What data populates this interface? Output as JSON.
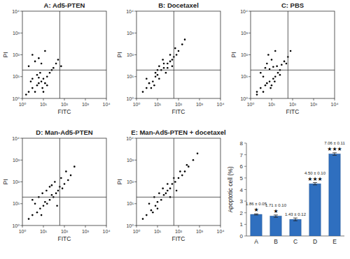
{
  "chart_data": [
    {
      "type": "scatter",
      "title": "A: Ad5-PTEN",
      "x_label": "FITC",
      "y_label": "PI",
      "log": true,
      "color": "#000000",
      "marker": "dot",
      "xlim": [
        1,
        10000
      ],
      "ylim": [
        1,
        10000
      ],
      "xticks": [
        {
          "value": 1,
          "label": "10⁰"
        },
        {
          "value": 10,
          "label": "10¹"
        },
        {
          "value": 100,
          "label": "10²"
        },
        {
          "value": 1000,
          "label": "10³"
        },
        {
          "value": 10000,
          "label": "10⁴"
        }
      ],
      "yticks": [
        {
          "value": 1,
          "label": "10⁰"
        },
        {
          "value": 10,
          "label": "10¹"
        },
        {
          "value": 100,
          "label": "10²"
        },
        {
          "value": 1000,
          "label": "10³"
        },
        {
          "value": 10000,
          "label": "10⁴"
        }
      ],
      "gate_x": 60,
      "gate_y": 20,
      "x": [
        2,
        3,
        4,
        5,
        6,
        8,
        10,
        12,
        15,
        3,
        5,
        7,
        9,
        20,
        25,
        30,
        40,
        2,
        4,
        6,
        3,
        8,
        12,
        50,
        70,
        1.5,
        2.5,
        10,
        15,
        6
      ],
      "values": [
        2,
        3,
        2,
        4,
        5,
        6,
        8,
        5,
        10,
        8,
        12,
        15,
        3,
        15,
        20,
        25,
        40,
        30,
        50,
        70,
        100,
        40,
        150,
        60,
        30,
        1.5,
        6,
        2,
        4,
        9
      ]
    },
    {
      "type": "scatter",
      "title": "B: Docetaxel",
      "x_label": "FITC",
      "y_label": "PI",
      "log": true,
      "color": "#000000",
      "marker": "dot",
      "xlim": [
        1,
        10000
      ],
      "ylim": [
        1,
        10000
      ],
      "xticks": [
        {
          "value": 1,
          "label": "10⁰"
        },
        {
          "value": 10,
          "label": "10¹"
        },
        {
          "value": 100,
          "label": "10²"
        },
        {
          "value": 1000,
          "label": "10³"
        },
        {
          "value": 10000,
          "label": "10⁴"
        }
      ],
      "yticks": [
        {
          "value": 1,
          "label": "10⁰"
        },
        {
          "value": 10,
          "label": "10¹"
        },
        {
          "value": 100,
          "label": "10²"
        },
        {
          "value": 1000,
          "label": "10³"
        },
        {
          "value": 10000,
          "label": "10⁴"
        }
      ],
      "gate_x": 60,
      "gate_y": 20,
      "x": [
        2,
        3,
        4,
        6,
        8,
        10,
        12,
        15,
        20,
        25,
        30,
        40,
        50,
        60,
        80,
        100,
        150,
        5,
        8,
        12,
        20,
        30,
        3,
        7,
        40,
        70,
        200,
        10,
        18,
        50
      ],
      "values": [
        2,
        3,
        5,
        6,
        10,
        12,
        8,
        20,
        25,
        15,
        40,
        50,
        60,
        80,
        100,
        150,
        300,
        3,
        15,
        30,
        40,
        25,
        8,
        4,
        100,
        200,
        500,
        20,
        60,
        30
      ]
    },
    {
      "type": "scatter",
      "title": "C: PBS",
      "x_label": "FITC",
      "y_label": "PI",
      "log": true,
      "color": "#000000",
      "marker": "dot",
      "xlim": [
        1,
        10000
      ],
      "ylim": [
        1,
        10000
      ],
      "xticks": [
        {
          "value": 1,
          "label": "10⁰"
        },
        {
          "value": 10,
          "label": "10¹"
        },
        {
          "value": 100,
          "label": "10²"
        },
        {
          "value": 1000,
          "label": "10³"
        },
        {
          "value": 10000,
          "label": "10⁴"
        }
      ],
      "yticks": [
        {
          "value": 1,
          "label": "10⁰"
        },
        {
          "value": 10,
          "label": "10¹"
        },
        {
          "value": 100,
          "label": "10²"
        },
        {
          "value": 1000,
          "label": "10³"
        },
        {
          "value": 10000,
          "label": "10⁴"
        }
      ],
      "gate_x": 60,
      "gate_y": 20,
      "x": [
        2,
        3,
        4,
        5,
        6,
        8,
        10,
        12,
        15,
        20,
        25,
        5,
        8,
        12,
        18,
        3,
        6,
        10,
        30,
        40,
        60,
        2,
        4,
        7,
        15,
        25,
        50,
        80,
        9,
        14
      ],
      "values": [
        2,
        3,
        2,
        4,
        5,
        6,
        4,
        8,
        10,
        15,
        20,
        25,
        22,
        28,
        30,
        15,
        40,
        60,
        35,
        50,
        80,
        1.5,
        10,
        100,
        150,
        12,
        40,
        150,
        3,
        6
      ]
    },
    {
      "type": "scatter",
      "title": "D: Man-Ad5-PTEN",
      "x_label": "FITC",
      "y_label": "PI",
      "log": true,
      "color": "#000000",
      "marker": "dot",
      "xlim": [
        1,
        10000
      ],
      "ylim": [
        1,
        10000
      ],
      "xticks": [
        {
          "value": 1,
          "label": "10⁰"
        },
        {
          "value": 10,
          "label": "10¹"
        },
        {
          "value": 100,
          "label": "10²"
        },
        {
          "value": 1000,
          "label": "10³"
        },
        {
          "value": 10000,
          "label": "10⁴"
        }
      ],
      "yticks": [
        {
          "value": 1,
          "label": "10⁰"
        },
        {
          "value": 10,
          "label": "10¹"
        },
        {
          "value": 100,
          "label": "10²"
        },
        {
          "value": 1000,
          "label": "10³"
        },
        {
          "value": 10000,
          "label": "10⁴"
        }
      ],
      "gate_x": 60,
      "gate_y": 20,
      "x": [
        2,
        3,
        5,
        7,
        10,
        12,
        15,
        20,
        25,
        30,
        40,
        50,
        60,
        80,
        100,
        150,
        200,
        4,
        6,
        9,
        14,
        20,
        35,
        45,
        70,
        120,
        300,
        8,
        3,
        25
      ],
      "values": [
        2,
        3,
        4,
        6,
        8,
        12,
        10,
        15,
        25,
        20,
        30,
        40,
        60,
        50,
        80,
        120,
        200,
        10,
        20,
        30,
        40,
        60,
        100,
        8,
        150,
        300,
        500,
        3,
        15,
        70
      ]
    },
    {
      "type": "scatter",
      "title": "E: Man-Ad5-PTEN + docetaxel",
      "x_label": "FITC",
      "y_label": "PI",
      "log": true,
      "color": "#000000",
      "marker": "dot",
      "xlim": [
        1,
        10000
      ],
      "ylim": [
        1,
        10000
      ],
      "xticks": [
        {
          "value": 1,
          "label": "10⁰"
        },
        {
          "value": 10,
          "label": "10¹"
        },
        {
          "value": 100,
          "label": "10²"
        },
        {
          "value": 1000,
          "label": "10³"
        },
        {
          "value": 10000,
          "label": "10⁴"
        }
      ],
      "yticks": [
        {
          "value": 1,
          "label": "10⁰"
        },
        {
          "value": 10,
          "label": "10¹"
        },
        {
          "value": 100,
          "label": "10²"
        },
        {
          "value": 1000,
          "label": "10³"
        },
        {
          "value": 10000,
          "label": "10⁴"
        }
      ],
      "gate_x": 60,
      "gate_y": 20,
      "x": [
        2,
        3,
        5,
        8,
        10,
        15,
        20,
        25,
        30,
        40,
        50,
        70,
        100,
        150,
        200,
        300,
        500,
        800,
        4,
        7,
        12,
        18,
        30,
        60,
        120,
        250,
        6,
        10,
        40,
        80
      ],
      "values": [
        2,
        3,
        5,
        8,
        12,
        15,
        25,
        30,
        40,
        50,
        80,
        100,
        150,
        200,
        300,
        500,
        1000,
        2000,
        10,
        20,
        30,
        50,
        80,
        150,
        300,
        600,
        4,
        6,
        20,
        40
      ]
    },
    {
      "type": "bar",
      "y_label": "Apoptotic cell (%)",
      "color": "#2f6fbf",
      "data_labels": true,
      "categories": [
        "A",
        "B",
        "C",
        "D",
        "E"
      ],
      "values": [
        1.86,
        1.71,
        1.43,
        4.5,
        7.06
      ],
      "errors": [
        0.05,
        0.1,
        0.12,
        0.1,
        0.11
      ],
      "value_labels": [
        "1.86 ± 0.05",
        "1.71 ± 0.10",
        "1.43 ± 0.12",
        "4.50 ± 0.10",
        "7.06 ± 0.11"
      ],
      "significance": [
        "★",
        "★",
        null,
        "★★★",
        "★★★"
      ],
      "ylim": [
        0,
        8
      ],
      "yticks": [
        0,
        1,
        2,
        3,
        4,
        5,
        6,
        7,
        8
      ]
    }
  ]
}
